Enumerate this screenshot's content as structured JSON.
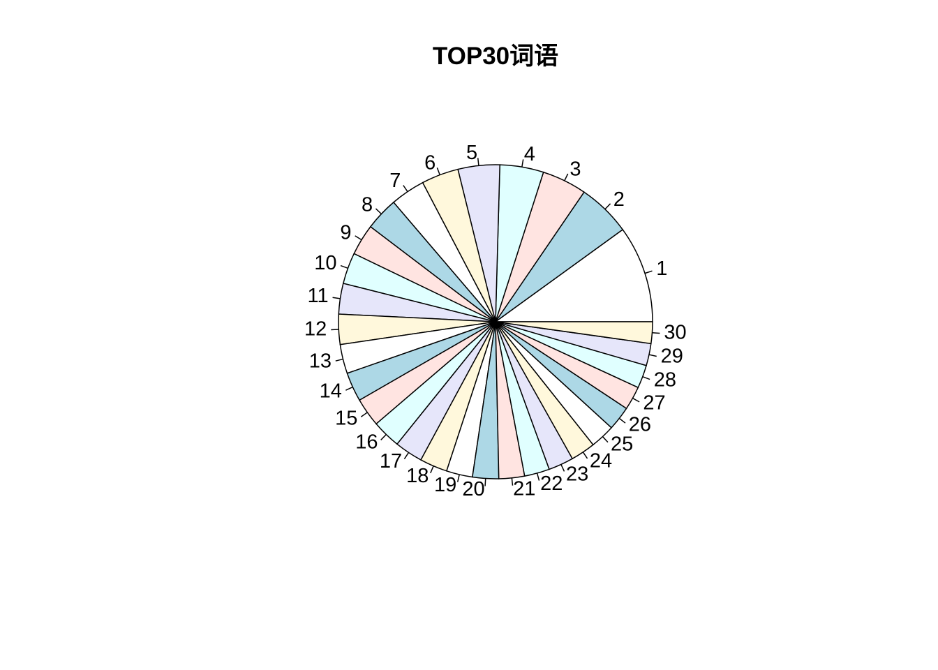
{
  "chart_data": {
    "type": "pie",
    "title": "TOP30词语",
    "labels": [
      "1",
      "2",
      "3",
      "4",
      "5",
      "6",
      "7",
      "8",
      "9",
      "10",
      "11",
      "12",
      "13",
      "14",
      "15",
      "16",
      "17",
      "18",
      "19",
      "20",
      "21",
      "22",
      "23",
      "24",
      "25",
      "26",
      "27",
      "28",
      "29",
      "30"
    ],
    "values": [
      9.65,
      5.3,
      4.45,
      4.35,
      4.15,
      3.7,
      3.45,
      3.3,
      3.1,
      3.1,
      3.05,
      3.0,
      2.9,
      2.9,
      2.85,
      2.85,
      2.8,
      2.75,
      2.6,
      2.6,
      2.55,
      2.5,
      2.5,
      2.45,
      2.45,
      2.4,
      2.35,
      2.3,
      2.2,
      2.15
    ],
    "colors": [
      "#FFFFFF",
      "#ADD8E6",
      "#FFE4E1",
      "#E0FFFF",
      "#E6E6FA",
      "#FFF8DC"
    ],
    "start_angle_deg": 0,
    "direction": "counterclockwise",
    "legend": "none"
  }
}
